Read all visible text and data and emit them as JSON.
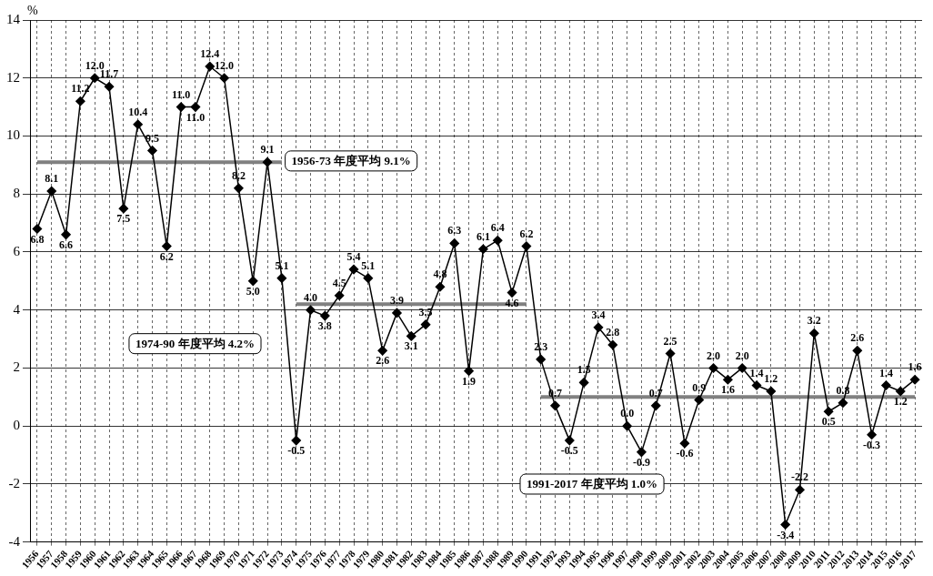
{
  "chart_data": {
    "type": "line",
    "ylabel": "%",
    "categories": [
      "1956",
      "1957",
      "1958",
      "1959",
      "1960",
      "1961",
      "1962",
      "1963",
      "1964",
      "1965",
      "1966",
      "1967",
      "1968",
      "1969",
      "1970",
      "1971",
      "1972",
      "1973",
      "1974",
      "1975",
      "1976",
      "1977",
      "1978",
      "1979",
      "1980",
      "1981",
      "1982",
      "1983",
      "1984",
      "1985",
      "1986",
      "1987",
      "1988",
      "1989",
      "1990",
      "1991",
      "1992",
      "1993",
      "1994",
      "1995",
      "1996",
      "1997",
      "1998",
      "1999",
      "2000",
      "2001",
      "2002",
      "2003",
      "2004",
      "2005",
      "2006",
      "2007",
      "2008",
      "2009",
      "2010",
      "2011",
      "2012",
      "2013",
      "2014",
      "2015",
      "2016",
      "2017"
    ],
    "series": [
      {
        "color": "#000000",
        "values": [
          6.8,
          8.1,
          6.6,
          11.2,
          12.0,
          11.7,
          7.5,
          10.4,
          9.5,
          6.2,
          11.0,
          11.0,
          12.4,
          12.0,
          8.2,
          5.0,
          9.1,
          5.1,
          -0.5,
          4.0,
          3.8,
          4.5,
          5.4,
          5.1,
          2.6,
          3.9,
          3.1,
          3.5,
          4.8,
          6.3,
          1.9,
          6.1,
          6.4,
          4.6,
          6.2,
          2.3,
          0.7,
          -0.5,
          1.5,
          3.4,
          2.8,
          0.0,
          -0.9,
          0.7,
          2.5,
          -0.6,
          0.9,
          2.0,
          1.6,
          2.0,
          1.4,
          1.2,
          -3.4,
          -2.2,
          3.2,
          0.5,
          0.8,
          2.6,
          -0.3,
          1.4,
          1.2,
          1.6
        ],
        "value_labels": [
          "6.8",
          "8.1",
          "6.6",
          "11.2",
          "12.0",
          "11.7",
          "7.5",
          "10.4",
          "9.5",
          "6.2",
          "11.0",
          "11.0",
          "12.4",
          "12.0",
          "8.2",
          "5.0",
          "9.1",
          "5.1",
          "-0.5",
          "4.0",
          "3.8",
          "4.5",
          "5.4",
          "5.1",
          "2.6",
          "3.9",
          "3.1",
          "3.5",
          "4.8",
          "6.3",
          "1.9",
          "6.1",
          "6.4",
          "4.6",
          "6.2",
          "2.3",
          "0.7",
          "-0.5",
          "1.5",
          "3.4",
          "2.8",
          "0.0",
          "-0.9",
          "0.7",
          "2.5",
          "-0.6",
          "0.9",
          "2.0",
          "1.6",
          "2.0",
          "1.4",
          "1.2",
          "-3.4",
          "-2.2",
          "3.2",
          "0.5",
          "0.8",
          "2.6",
          "-0.3",
          "1.4",
          "1.2",
          "1.6"
        ]
      },
      {
        "color": "#808080",
        "marker": "none",
        "values": [
          9.1,
          9.1,
          9.1,
          9.1,
          9.1,
          9.1,
          9.1,
          9.1,
          9.1,
          9.1,
          9.1,
          9.1,
          9.1,
          9.1,
          9.1,
          9.1,
          9.1,
          9.1,
          null,
          null,
          null,
          null,
          null,
          null,
          null,
          null,
          null,
          null,
          null,
          null,
          null,
          null,
          null,
          null,
          null,
          null,
          null,
          null,
          null,
          null,
          null,
          null,
          null,
          null,
          null,
          null,
          null,
          null,
          null,
          null,
          null,
          null,
          null,
          null,
          null,
          null,
          null,
          null,
          null,
          null,
          null,
          null
        ]
      },
      {
        "color": "#808080",
        "marker": "none",
        "values": [
          null,
          null,
          null,
          null,
          null,
          null,
          null,
          null,
          null,
          null,
          null,
          null,
          null,
          null,
          null,
          null,
          null,
          null,
          4.2,
          4.2,
          4.2,
          4.2,
          4.2,
          4.2,
          4.2,
          4.2,
          4.2,
          4.2,
          4.2,
          4.2,
          4.2,
          4.2,
          4.2,
          4.2,
          4.2,
          null,
          null,
          null,
          null,
          null,
          null,
          null,
          null,
          null,
          null,
          null,
          null,
          null,
          null,
          null,
          null,
          null,
          null,
          null,
          null,
          null,
          null,
          null,
          null,
          null,
          null,
          null
        ]
      },
      {
        "color": "#808080",
        "marker": "none",
        "values": [
          null,
          null,
          null,
          null,
          null,
          null,
          null,
          null,
          null,
          null,
          null,
          null,
          null,
          null,
          null,
          null,
          null,
          null,
          null,
          null,
          null,
          null,
          null,
          null,
          null,
          null,
          null,
          null,
          null,
          null,
          null,
          null,
          null,
          null,
          null,
          1.0,
          1.0,
          1.0,
          1.0,
          1.0,
          1.0,
          1.0,
          1.0,
          1.0,
          1.0,
          1.0,
          1.0,
          1.0,
          1.0,
          1.0,
          1.0,
          1.0,
          1.0,
          1.0,
          1.0,
          1.0,
          1.0,
          1.0,
          1.0,
          1.0,
          1.0,
          1.0
        ]
      }
    ],
    "annotations": [
      "1956-73 年度平均 9.1%",
      "1974-90 年度平均 4.2%",
      "1991-2017 年度平均 1.0%"
    ],
    "ylim": [
      -4,
      14
    ],
    "yticks": [
      -4,
      -2,
      0,
      2,
      4,
      6,
      8,
      10,
      12,
      14
    ],
    "grid": true,
    "marker": "diamond",
    "line_style": "solid",
    "legend": false
  }
}
